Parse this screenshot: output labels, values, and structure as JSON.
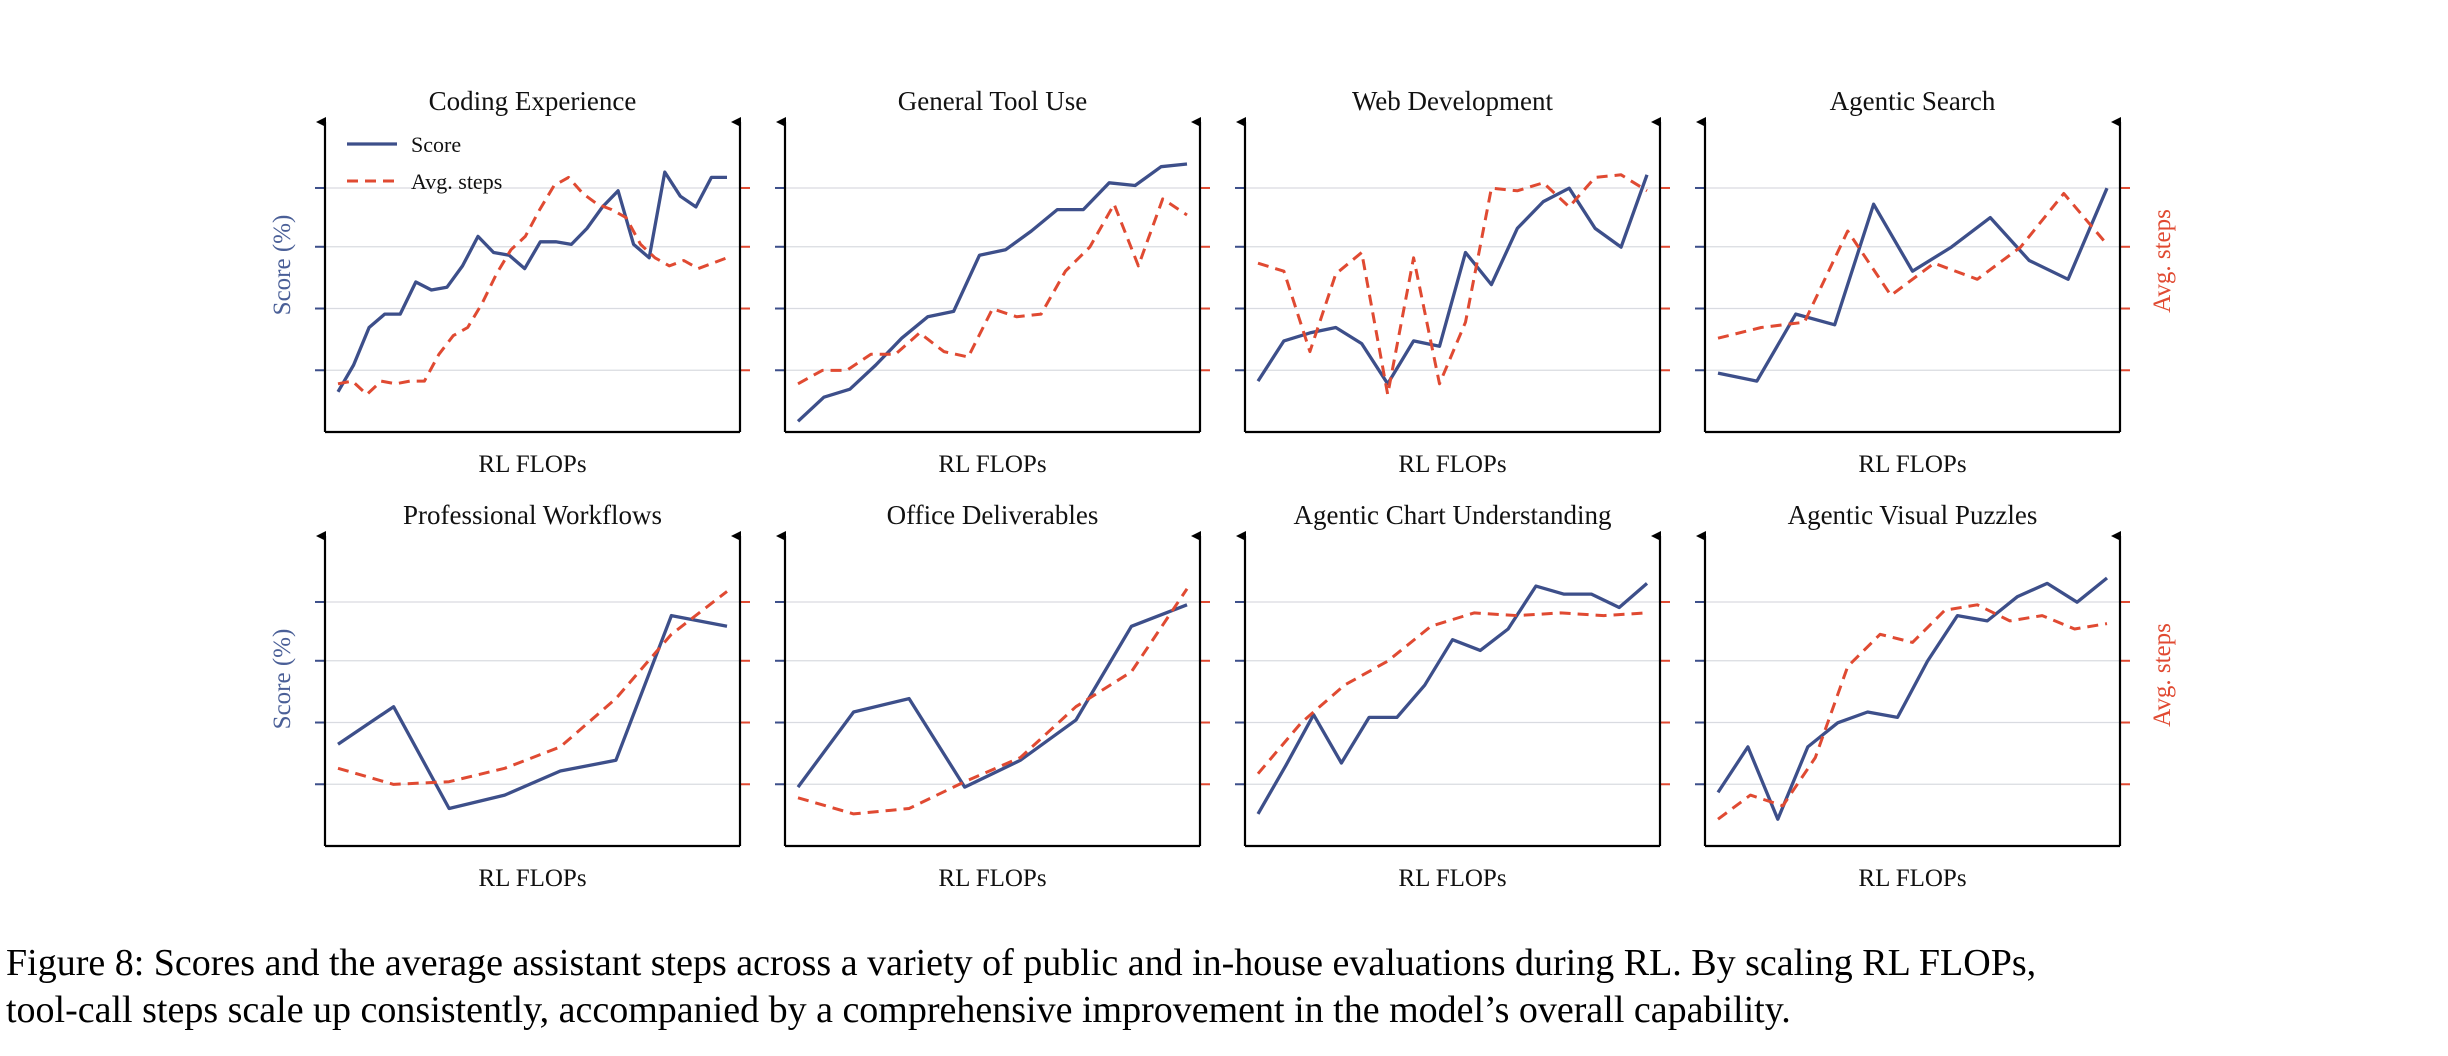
{
  "caption": {
    "line1": "Figure 8: Scores and the average assistant steps across a variety of public and in-house evaluations during RL. By scaling RL FLOPs,",
    "line2": "tool-call steps scale up consistently, accompanied by a comprehensive improvement in the model’s overall capability."
  },
  "colors": {
    "score": "#3d4f8a",
    "steps": "#e04a32",
    "grid": "#d9dbe1",
    "axis": "#000000"
  },
  "legend": {
    "score": "Score",
    "steps": "Avg. steps"
  },
  "chart_data": [
    {
      "type": "line",
      "title": "Coding Experience",
      "xlabel": "RL FLOPs",
      "ylabel": "Score (%)",
      "ylabel_right": "",
      "ylim": [
        0,
        100
      ],
      "legend": "top-left",
      "series": [
        {
          "name": "Score",
          "values": [
            12,
            22,
            36,
            41,
            41,
            53,
            50,
            51,
            59,
            70,
            64,
            63,
            58,
            68,
            68,
            67,
            73,
            81,
            87,
            67,
            62,
            94,
            85,
            81,
            92,
            92
          ]
        },
        {
          "name": "Avg. steps",
          "values": [
            15,
            16,
            11,
            16,
            15,
            16,
            16,
            26,
            33,
            36,
            45,
            56,
            65,
            70,
            80,
            89,
            92,
            86,
            82,
            80,
            77,
            67,
            62,
            59,
            61,
            58,
            60,
            62
          ]
        }
      ]
    },
    {
      "type": "line",
      "title": "General Tool Use",
      "xlabel": "RL FLOPs",
      "ylabel": "",
      "ylabel_right": "",
      "ylim": [
        0,
        100
      ],
      "series": [
        {
          "name": "Score",
          "values": [
            1,
            10,
            13,
            22,
            32,
            40,
            42,
            63,
            65,
            72,
            80,
            80,
            90,
            89,
            96,
            97
          ]
        },
        {
          "name": "Avg. steps",
          "values": [
            15,
            20,
            20,
            26,
            26,
            34,
            27,
            25,
            43,
            40,
            41,
            57,
            66,
            82,
            59,
            84,
            78
          ]
        }
      ]
    },
    {
      "type": "line",
      "title": "Web Development",
      "xlabel": "RL FLOPs",
      "ylabel": "",
      "ylabel_right": "",
      "ylim": [
        0,
        100
      ],
      "series": [
        {
          "name": "Score",
          "values": [
            16,
            31,
            34,
            36,
            30,
            15,
            31,
            29,
            64,
            52,
            73,
            83,
            88,
            73,
            66,
            93
          ]
        },
        {
          "name": "Avg. steps",
          "values": [
            60,
            57,
            27,
            56,
            64,
            11,
            62,
            15,
            38,
            88,
            87,
            90,
            81,
            92,
            93,
            87
          ]
        }
      ]
    },
    {
      "type": "line",
      "title": "Agentic Search",
      "xlabel": "RL FLOPs",
      "ylabel": "",
      "ylabel_right": "Avg. steps",
      "ylim": [
        0,
        100
      ],
      "series": [
        {
          "name": "Score",
          "values": [
            19,
            16,
            41,
            37,
            82,
            57,
            66,
            77,
            61,
            54,
            88
          ]
        },
        {
          "name": "Avg. steps",
          "values": [
            32,
            36,
            38,
            72,
            48,
            60,
            54,
            66,
            86,
            67
          ]
        }
      ]
    },
    {
      "type": "line",
      "title": "Professional Workflows",
      "xlabel": "RL FLOPs",
      "ylabel": "Score (%)",
      "ylabel_right": "",
      "ylim": [
        0,
        100
      ],
      "series": [
        {
          "name": "Score",
          "values": [
            35,
            49,
            11,
            16,
            25,
            29,
            83,
            79
          ]
        },
        {
          "name": "Avg. steps",
          "values": [
            26,
            20,
            21,
            26,
            34,
            52,
            76,
            92
          ]
        }
      ]
    },
    {
      "type": "line",
      "title": "Office Deliverables",
      "xlabel": "RL FLOPs",
      "ylabel": "",
      "ylabel_right": "",
      "ylim": [
        0,
        100
      ],
      "series": [
        {
          "name": "Score",
          "values": [
            19,
            47,
            52,
            19,
            29,
            44,
            79,
            87
          ]
        },
        {
          "name": "Avg. steps",
          "values": [
            15,
            9,
            11,
            21,
            30,
            49,
            62,
            93
          ]
        }
      ]
    },
    {
      "type": "line",
      "title": "Agentic Chart Understanding",
      "xlabel": "RL FLOPs",
      "ylabel": "",
      "ylabel_right": "",
      "ylim": [
        0,
        100
      ],
      "series": [
        {
          "name": "Score",
          "values": [
            9,
            27,
            46,
            28,
            45,
            45,
            57,
            74,
            70,
            78,
            94,
            91,
            91,
            86,
            95
          ]
        },
        {
          "name": "Avg. steps",
          "values": [
            24,
            43,
            57,
            66,
            79,
            84,
            83,
            84,
            83,
            84
          ]
        }
      ]
    },
    {
      "type": "line",
      "title": "Agentic Visual Puzzles",
      "xlabel": "RL FLOPs",
      "ylabel": "",
      "ylabel_right": "Avg. steps",
      "ylim": [
        0,
        100
      ],
      "series": [
        {
          "name": "Score",
          "values": [
            17,
            34,
            7,
            34,
            43,
            47,
            45,
            66,
            83,
            81,
            90,
            95,
            88,
            97
          ]
        },
        {
          "name": "Avg. steps",
          "values": [
            7,
            16,
            12,
            30,
            64,
            76,
            73,
            85,
            87,
            81,
            83,
            78,
            80
          ]
        }
      ]
    }
  ]
}
